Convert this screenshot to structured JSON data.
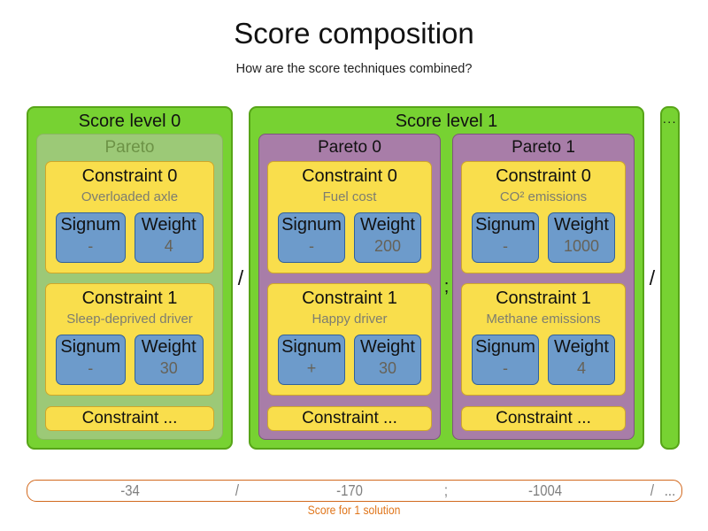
{
  "title": "Score composition",
  "subtitle": "How are the score techniques combined?",
  "labels": {
    "signum": "Signum",
    "weight": "Weight"
  },
  "separators": {
    "level": "/",
    "pareto": ";"
  },
  "ellipsis_label": "...",
  "levels": [
    {
      "label": "Score level 0",
      "paretos": [
        {
          "label": "Pareto",
          "variant": "implicit",
          "constraints": [
            {
              "name": "Constraint 0",
              "description": "Overloaded axle",
              "signum": "-",
              "weight": "4"
            },
            {
              "name": "Constraint 1",
              "description": "Sleep-deprived driver",
              "signum": "-",
              "weight": "30"
            }
          ],
          "more_label": "Constraint ..."
        }
      ]
    },
    {
      "label": "Score level 1",
      "paretos": [
        {
          "label": "Pareto 0",
          "variant": "purple",
          "constraints": [
            {
              "name": "Constraint 0",
              "description": "Fuel cost",
              "signum": "-",
              "weight": "200"
            },
            {
              "name": "Constraint 1",
              "description": "Happy driver",
              "signum": "+",
              "weight": "30"
            }
          ],
          "more_label": "Constraint ..."
        },
        {
          "label": "Pareto 1",
          "variant": "purple",
          "constraints": [
            {
              "name": "Constraint 0",
              "description": "CO² emissions",
              "signum": "-",
              "weight": "1000"
            },
            {
              "name": "Constraint 1",
              "description": "Methane emissions",
              "signum": "-",
              "weight": "4"
            }
          ],
          "more_label": "Constraint ..."
        }
      ]
    }
  ],
  "score_bar": {
    "items": [
      {
        "text": "-34"
      },
      {
        "text": "/"
      },
      {
        "text": "-170"
      },
      {
        "text": ";"
      },
      {
        "text": "-1004"
      },
      {
        "text": "/"
      },
      {
        "text": "..."
      }
    ],
    "caption": "Score for 1 solution"
  },
  "colors": {
    "level_green": "#77D232",
    "level_green_border": "#57A518",
    "pareto_purple": "#A87DA8",
    "pareto_implicit_green": "#9CC977",
    "constraint_yellow": "#F9DE4C",
    "signum_weight_blue": "#6D9BCB",
    "score_bar_orange": "#D2691E",
    "muted_text_gray": "#7D7D70"
  }
}
